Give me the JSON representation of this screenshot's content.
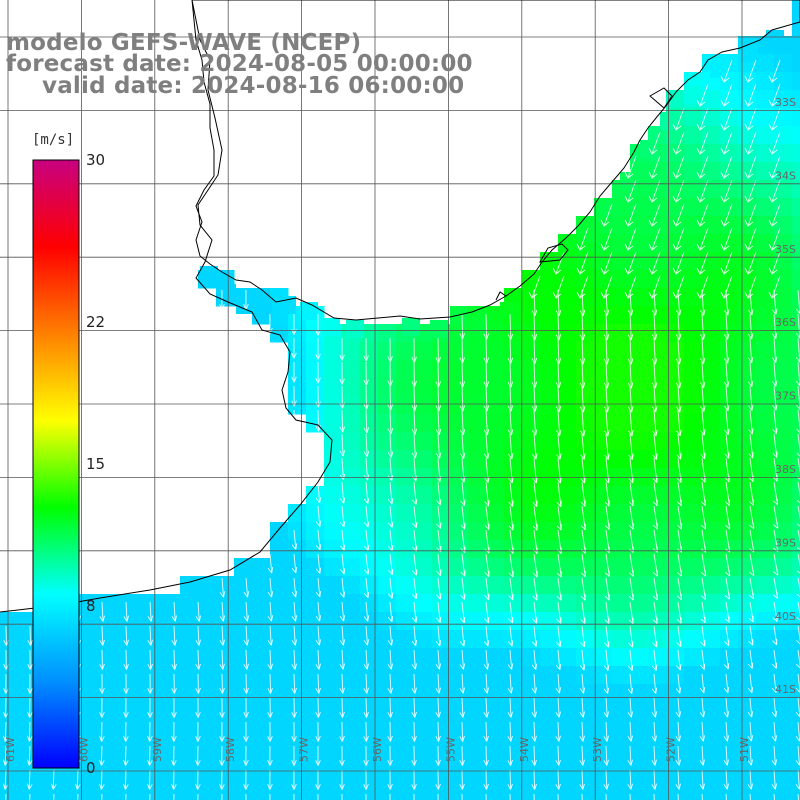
{
  "title": {
    "line1": "modelo GEFS-WAVE (NCEP)",
    "line2": "forecast date: 2024-08-05 00:00:00",
    "line3": "valid date: 2024-08-16 06:00:00"
  },
  "colorbar": {
    "unit": "[m/s]",
    "ticks": [
      {
        "label": "30",
        "value": 30
      },
      {
        "label": "22",
        "value": 22
      },
      {
        "label": "15",
        "value": 15
      },
      {
        "label": "8",
        "value": 8
      },
      {
        "label": "0",
        "value": 0
      }
    ],
    "stops": [
      "#0000ff",
      "#0090ff",
      "#00ffff",
      "#00ff00",
      "#ffff00",
      "#ff8000",
      "#ff0000",
      "#c80080"
    ]
  },
  "map": {
    "longitude_labels": [
      "61W",
      "60W",
      "59W",
      "58W",
      "57W",
      "56W",
      "55W",
      "54W",
      "53W",
      "52W",
      "51W"
    ],
    "latitude_labels": [
      "33S",
      "34S",
      "35S",
      "36S",
      "37S",
      "38S",
      "39S",
      "40S",
      "41S"
    ],
    "colors": {
      "land": "#ffffff",
      "coast": "#000000",
      "grid": "#555555",
      "arrow": "#ffffff"
    }
  }
}
